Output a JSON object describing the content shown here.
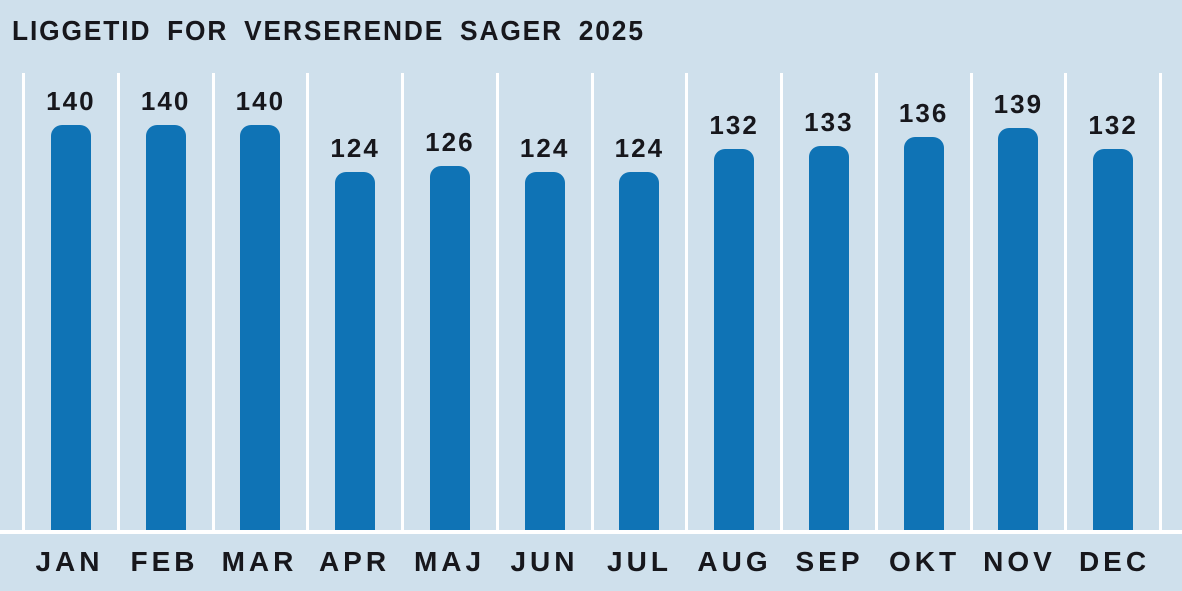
{
  "chart_data": {
    "type": "bar",
    "title": "LIGGETID FOR VERSERENDE SAGER 2025",
    "categories": [
      "JAN",
      "FEB",
      "MAR",
      "APR",
      "MAJ",
      "JUN",
      "JUL",
      "AUG",
      "SEP",
      "OKT",
      "NOV",
      "DEC"
    ],
    "values": [
      140,
      140,
      140,
      124,
      126,
      124,
      124,
      132,
      133,
      136,
      139,
      132
    ],
    "xlabel": "",
    "ylabel": "",
    "ylim": [
      0,
      158
    ],
    "grid": "vertical white separators between columns, white baseline under bars",
    "legend": "none",
    "data_labels_shown": true
  },
  "colors": {
    "background": "#cfe0ec",
    "bar": "#0f73b5",
    "separator": "#ffffff",
    "text": "#17171c"
  }
}
